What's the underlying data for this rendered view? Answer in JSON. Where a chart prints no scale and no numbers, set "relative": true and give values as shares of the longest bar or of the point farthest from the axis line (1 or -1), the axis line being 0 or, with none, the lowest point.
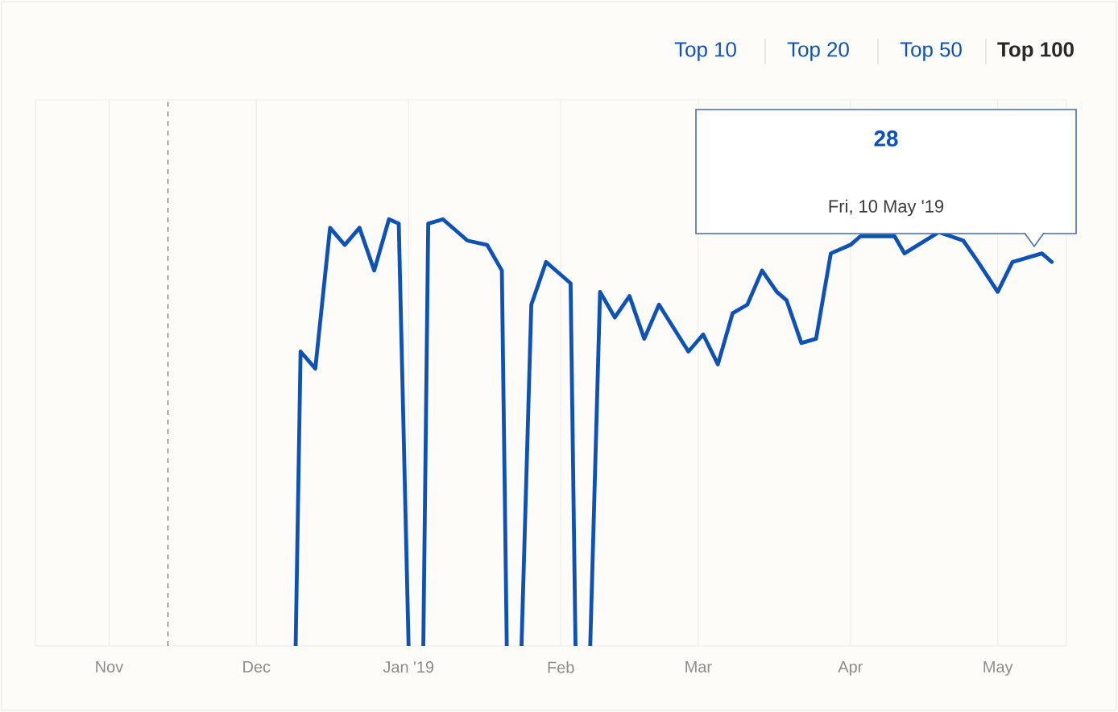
{
  "chart_data": {
    "type": "line",
    "relative": true,
    "x": [
      "2018-12-09",
      "2018-12-10",
      "2018-12-13",
      "2018-12-16",
      "2018-12-19",
      "2018-12-22",
      "2018-12-25",
      "2018-12-28",
      "2018-12-30",
      "2019-01-01",
      "2019-01-02",
      "2019-01-04",
      "2019-01-05",
      "2019-01-08",
      "2019-01-13",
      "2019-01-17",
      "2019-01-20",
      "2019-01-21",
      "2019-01-22",
      "2019-01-24",
      "2019-01-26",
      "2019-01-29",
      "2019-02-03",
      "2019-02-04",
      "2019-02-05",
      "2019-02-07",
      "2019-02-09",
      "2019-02-12",
      "2019-02-15",
      "2019-02-18",
      "2019-02-21",
      "2019-02-27",
      "2019-03-02",
      "2019-03-05",
      "2019-03-08",
      "2019-03-11",
      "2019-03-14",
      "2019-03-17",
      "2019-03-19",
      "2019-03-22",
      "2019-03-25",
      "2019-03-28",
      "2019-04-01",
      "2019-04-03",
      "2019-04-10",
      "2019-04-12",
      "2019-04-19",
      "2019-04-24",
      "2019-04-27",
      "2019-05-01",
      "2019-05-04",
      "2019-05-10",
      "2019-05-12"
    ],
    "series": [
      {
        "color": "#0f52b5",
        "values": [
          0,
          0.69,
          0.65,
          0.98,
          0.94,
          0.98,
          0.88,
          1,
          0.99,
          0,
          null,
          0,
          0.99,
          1,
          0.95,
          0.94,
          0.88,
          0,
          null,
          0,
          0.8,
          0.9,
          0.85,
          0,
          null,
          0,
          0.83,
          0.77,
          0.82,
          0.72,
          0.8,
          0.69,
          0.73,
          0.66,
          0.78,
          0.8,
          0.88,
          0.83,
          0.81,
          0.71,
          0.72,
          0.92,
          0.94,
          0.96,
          0.96,
          0.92,
          0.97,
          0.95,
          0.9,
          0.83,
          0.9,
          0.92,
          0.9
        ]
      }
    ],
    "xlim": [
      "2018-10-17",
      "2019-05-15"
    ],
    "xticks": [
      {
        "value": "2018-11-01",
        "label": "Nov"
      },
      {
        "value": "2018-12-01",
        "label": "Dec"
      },
      {
        "value": "2019-01-01",
        "label": "Jan '19"
      },
      {
        "value": "2019-02-01",
        "label": "Feb"
      },
      {
        "value": "2019-03-01",
        "label": "Mar"
      },
      {
        "value": "2019-04-01",
        "label": "Apr"
      },
      {
        "value": "2019-05-01",
        "label": "May"
      }
    ],
    "grid": "x",
    "tick_labels": "x",
    "marker": "none",
    "line_style": "solid",
    "ref_lines": [
      {
        "axis": "x",
        "value": "2018-11-13",
        "color": "#222222",
        "line_style": "dashed"
      }
    ],
    "annotations": [
      "Top 10",
      "Top 20",
      "Top 50",
      "Top 100",
      "28",
      "Fri, 10 May '19"
    ]
  }
}
